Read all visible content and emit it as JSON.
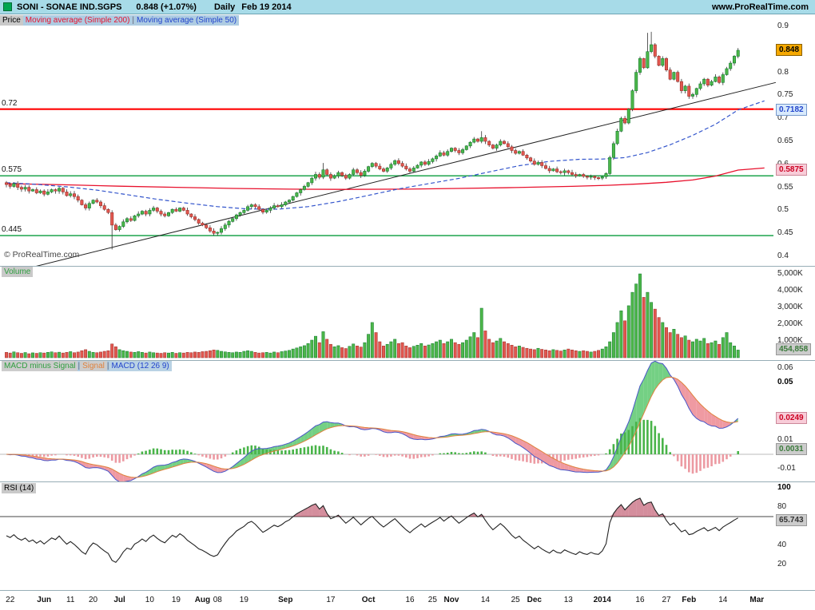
{
  "header": {
    "symbol": "SONI - SONAE IND.SGPS",
    "quote": "0.848 (+1.07%)",
    "timeframe": "Daily",
    "date": "Feb 19 2014",
    "site": "www.ProRealTime.com"
  },
  "colors": {
    "header_bg": "#a7dbe8",
    "up": "#4cb649",
    "up_stroke": "#117a2e",
    "down": "#e2574f",
    "down_stroke": "#9c2f28",
    "wick": "#333333",
    "ma200": "#e8112d",
    "ma50": "#3355cc",
    "level_red": "#ff0000",
    "level_green": "#089c3c",
    "trend": "#222222",
    "macd_line": "#4855c8",
    "signal_line": "#e0823c",
    "fill_up": "rgba(92,200,110,0.85)",
    "fill_down": "rgba(236,136,146,0.85)",
    "hist_up": "#49b449",
    "hist_down": "#ec9aa2",
    "rsi_line": "#222222",
    "rsi_fill": "rgba(170,30,60,0.5)"
  },
  "price_panel": {
    "label": "Price",
    "legend_separator": "|",
    "legend": [
      {
        "label": "Moving average (Simple 200)",
        "color": "#e8112d"
      },
      {
        "label": "Moving average (Simple 50)",
        "color": "#2244cc"
      }
    ],
    "copyright": "© ProRealTime.com",
    "y_ticks": [
      {
        "label": "0.9",
        "value": 0.9
      },
      {
        "label": "0.85",
        "value": 0.85
      },
      {
        "label": "0.8",
        "value": 0.8
      },
      {
        "label": "0.75",
        "value": 0.75
      },
      {
        "label": "0.7",
        "value": 0.7
      },
      {
        "label": "0.65",
        "value": 0.65
      },
      {
        "label": "0.6",
        "value": 0.6
      },
      {
        "label": "0.55",
        "value": 0.55
      },
      {
        "label": "0.5",
        "value": 0.5
      },
      {
        "label": "0.45",
        "value": 0.45
      },
      {
        "label": "0.4",
        "value": 0.4
      }
    ],
    "left_labels": [
      {
        "label": "0.72",
        "value": 0.72
      },
      {
        "label": "0.575",
        "value": 0.575
      },
      {
        "label": "0.445",
        "value": 0.445
      }
    ],
    "badges": [
      {
        "name": "last-price",
        "text": "0.848",
        "value": 0.848,
        "bg": "#f5a800",
        "fg": "#000000",
        "border": "#8a6000"
      },
      {
        "name": "ma50-value",
        "text": "0.7182",
        "value": 0.7182,
        "bg": "#d8eafc",
        "fg": "#2244cc",
        "border": "#7799cc"
      },
      {
        "name": "ma200-value",
        "text": "0.5875",
        "value": 0.5875,
        "bg": "#f8ccd8",
        "fg": "#cc0022",
        "border": "#cc8899"
      }
    ]
  },
  "volume_panel": {
    "label": "Volume",
    "label_color": "#2f9e3f",
    "y_ticks": [
      {
        "label": "5,000K",
        "value": 5000
      },
      {
        "label": "4,000K",
        "value": 4000
      },
      {
        "label": "3,000K",
        "value": 3000
      },
      {
        "label": "2,000K",
        "value": 2000
      },
      {
        "label": "1,000K",
        "value": 1000
      }
    ],
    "badge": {
      "name": "volume-value",
      "text": "454,858",
      "value": 455,
      "bg": "#cccccc",
      "fg": "#3a7a3a",
      "border": "#999999"
    }
  },
  "macd_panel": {
    "separator": "|",
    "labels": [
      {
        "label": "MACD minus Signal",
        "color": "#2f9e3f",
        "bg": "#cccccc"
      },
      {
        "label": "Signal",
        "color": "#e0823c",
        "bg": "#cccccc"
      },
      {
        "label": "MACD (12 26 9)",
        "color": "#2244cc",
        "bg": "#b9d2e4"
      }
    ],
    "y_ticks": [
      {
        "label": "0.06",
        "value": 0.06
      },
      {
        "label": "0.05",
        "value": 0.05,
        "bold": true
      },
      {
        "label": "0.01",
        "value": 0.01
      },
      {
        "label": "-0.01",
        "value": -0.01
      }
    ],
    "badges": [
      {
        "name": "signal-value",
        "text": "0.0249",
        "value": 0.0249,
        "bg": "#f8ccd8",
        "fg": "#cc0022",
        "border": "#cc8899"
      },
      {
        "name": "hist-value",
        "text": "0.0031",
        "value": 0.0031,
        "bg": "#cccccc",
        "fg": "#3a7a3a",
        "border": "#999999"
      }
    ]
  },
  "rsi_panel": {
    "label": "RSI (14)",
    "y_ticks": [
      {
        "label": "100",
        "value": 100,
        "bold": true
      },
      {
        "label": "80",
        "value": 80
      },
      {
        "label": "40",
        "value": 40
      },
      {
        "label": "20",
        "value": 20
      }
    ],
    "badge": {
      "name": "rsi-value",
      "text": "65.743",
      "value": 65.743,
      "bg": "#cccccc",
      "fg": "#333333",
      "border": "#999999"
    },
    "ref_level": 70
  },
  "chart_data": [
    {
      "type": "candlestick",
      "name": "SONI - SONAE IND.SGPS Daily",
      "ylim": [
        0.39,
        0.905
      ],
      "first_open": 0.56,
      "closes": [
        0.556,
        0.552,
        0.558,
        0.55,
        0.546,
        0.55,
        0.542,
        0.545,
        0.538,
        0.542,
        0.535,
        0.54,
        0.545,
        0.542,
        0.548,
        0.54,
        0.532,
        0.536,
        0.53,
        0.522,
        0.512,
        0.505,
        0.515,
        0.522,
        0.518,
        0.51,
        0.502,
        0.495,
        0.468,
        0.458,
        0.465,
        0.475,
        0.482,
        0.478,
        0.488,
        0.492,
        0.498,
        0.492,
        0.5,
        0.505,
        0.498,
        0.492,
        0.488,
        0.495,
        0.502,
        0.498,
        0.505,
        0.5,
        0.492,
        0.486,
        0.48,
        0.472,
        0.468,
        0.462,
        0.455,
        0.45,
        0.452,
        0.46,
        0.468,
        0.476,
        0.482,
        0.49,
        0.495,
        0.5,
        0.508,
        0.512,
        0.508,
        0.502,
        0.496,
        0.5,
        0.505,
        0.51,
        0.508,
        0.512,
        0.518,
        0.522,
        0.53,
        0.538,
        0.545,
        0.552,
        0.56,
        0.57,
        0.578,
        0.572,
        0.588,
        0.578,
        0.57,
        0.575,
        0.582,
        0.576,
        0.57,
        0.578,
        0.588,
        0.582,
        0.576,
        0.585,
        0.595,
        0.602,
        0.596,
        0.59,
        0.585,
        0.592,
        0.6,
        0.608,
        0.602,
        0.596,
        0.59,
        0.585,
        0.592,
        0.598,
        0.605,
        0.6,
        0.606,
        0.612,
        0.618,
        0.625,
        0.62,
        0.628,
        0.635,
        0.63,
        0.625,
        0.632,
        0.64,
        0.648,
        0.655,
        0.65,
        0.658,
        0.65,
        0.642,
        0.635,
        0.642,
        0.65,
        0.645,
        0.638,
        0.63,
        0.624,
        0.628,
        0.62,
        0.614,
        0.607,
        0.6,
        0.604,
        0.597,
        0.591,
        0.586,
        0.59,
        0.584,
        0.582,
        0.586,
        0.582,
        0.578,
        0.575,
        0.578,
        0.574,
        0.572,
        0.574,
        0.571,
        0.57,
        0.573,
        0.58,
        0.615,
        0.645,
        0.672,
        0.7,
        0.69,
        0.72,
        0.76,
        0.8,
        0.83,
        0.81,
        0.845,
        0.86,
        0.835,
        0.815,
        0.83,
        0.805,
        0.785,
        0.8,
        0.78,
        0.76,
        0.77,
        0.748,
        0.752,
        0.765,
        0.775,
        0.785,
        0.772,
        0.78,
        0.79,
        0.778,
        0.795,
        0.808,
        0.82,
        0.835,
        0.848
      ],
      "wick_overrides": {
        "28": {
          "low": 0.415
        },
        "56": {
          "low": 0.445
        },
        "84": {
          "high": 0.603
        },
        "126": {
          "high": 0.672
        },
        "170": {
          "high": 0.886
        },
        "171": {
          "high": 0.888
        }
      },
      "levels": [
        {
          "value": 0.72,
          "color": "red",
          "width": 2.2
        },
        {
          "value": 0.575,
          "color": "green",
          "width": 1.4
        },
        {
          "value": 0.445,
          "color": "green",
          "width": 1.4
        }
      ],
      "trendline": {
        "i1": -5,
        "p1": 0.352,
        "i2": 204,
        "p2": 0.778
      },
      "ma200": [
        [
          0,
          0.558
        ],
        [
          15,
          0.5555
        ],
        [
          30,
          0.5525
        ],
        [
          45,
          0.55
        ],
        [
          60,
          0.5475
        ],
        [
          75,
          0.546
        ],
        [
          90,
          0.5455
        ],
        [
          105,
          0.546
        ],
        [
          120,
          0.5475
        ],
        [
          135,
          0.5495
        ],
        [
          150,
          0.552
        ],
        [
          160,
          0.5545
        ],
        [
          168,
          0.5575
        ],
        [
          175,
          0.561
        ],
        [
          182,
          0.566
        ],
        [
          188,
          0.5745
        ],
        [
          194,
          0.5875
        ],
        [
          201,
          0.592
        ]
      ],
      "ma50": [
        [
          0,
          0.56
        ],
        [
          8,
          0.5565
        ],
        [
          16,
          0.551
        ],
        [
          24,
          0.544
        ],
        [
          32,
          0.534
        ],
        [
          40,
          0.524
        ],
        [
          48,
          0.5155
        ],
        [
          56,
          0.508
        ],
        [
          64,
          0.503
        ],
        [
          72,
          0.5025
        ],
        [
          80,
          0.508
        ],
        [
          88,
          0.519
        ],
        [
          96,
          0.5325
        ],
        [
          104,
          0.5465
        ],
        [
          112,
          0.558
        ],
        [
          120,
          0.5695
        ],
        [
          128,
          0.5835
        ],
        [
          136,
          0.597
        ],
        [
          144,
          0.6065
        ],
        [
          152,
          0.611
        ],
        [
          158,
          0.6115
        ],
        [
          164,
          0.6145
        ],
        [
          170,
          0.6255
        ],
        [
          176,
          0.6425
        ],
        [
          182,
          0.663
        ],
        [
          188,
          0.687
        ],
        [
          194,
          0.7182
        ],
        [
          201,
          0.738
        ]
      ],
      "last_close": 0.848,
      "ma50_last": 0.7182,
      "ma200_last": 0.5875,
      "x_ticks": [
        {
          "label": "22",
          "i": 1
        },
        {
          "label": "Jun",
          "i": 10,
          "bold": true
        },
        {
          "label": "11",
          "i": 17
        },
        {
          "label": "20",
          "i": 23
        },
        {
          "label": "Jul",
          "i": 30,
          "bold": true
        },
        {
          "label": "10",
          "i": 38
        },
        {
          "label": "19",
          "i": 45
        },
        {
          "label": "Aug",
          "i": 52,
          "bold": true
        },
        {
          "label": "08",
          "i": 56
        },
        {
          "label": "19",
          "i": 63
        },
        {
          "label": "Sep",
          "i": 74,
          "bold": true
        },
        {
          "label": "17",
          "i": 86
        },
        {
          "label": "Oct",
          "i": 96,
          "bold": true
        },
        {
          "label": "16",
          "i": 107
        },
        {
          "label": "25",
          "i": 113
        },
        {
          "label": "Nov",
          "i": 118,
          "bold": true
        },
        {
          "label": "14",
          "i": 127
        },
        {
          "label": "25",
          "i": 135
        },
        {
          "label": "Dec",
          "i": 140,
          "bold": true
        },
        {
          "label": "13",
          "i": 149
        },
        {
          "label": "2014",
          "i": 158,
          "bold": true
        },
        {
          "label": "16",
          "i": 168
        },
        {
          "label": "27",
          "i": 175
        },
        {
          "label": "Feb",
          "i": 181,
          "bold": true
        },
        {
          "label": "14",
          "i": 190
        },
        {
          "label": "Mar",
          "i": 199,
          "bold": true
        }
      ]
    },
    {
      "type": "bar",
      "name": "Volume",
      "unit": "K",
      "ylim": [
        0,
        5600
      ],
      "last_label": "454,858",
      "values": [
        320,
        280,
        350,
        300,
        260,
        310,
        240,
        290,
        260,
        300,
        280,
        320,
        350,
        300,
        330,
        280,
        320,
        360,
        300,
        340,
        420,
        480,
        380,
        320,
        300,
        340,
        380,
        420,
        820,
        650,
        480,
        420,
        380,
        340,
        320,
        360,
        320,
        280,
        340,
        300,
        280,
        260,
        300,
        280,
        320,
        260,
        300,
        280,
        320,
        300,
        340,
        320,
        360,
        380,
        420,
        460,
        440,
        380,
        350,
        320,
        300,
        340,
        320,
        380,
        420,
        380,
        320,
        280,
        300,
        320,
        280,
        340,
        300,
        360,
        400,
        440,
        520,
        580,
        650,
        720,
        850,
        1050,
        1280,
        900,
        1550,
        1100,
        800,
        650,
        720,
        600,
        550,
        680,
        820,
        700,
        640,
        900,
        1400,
        2100,
        1500,
        950,
        700,
        800,
        950,
        1100,
        850,
        900,
        700,
        600,
        680,
        750,
        850,
        700,
        760,
        850,
        950,
        1050,
        850,
        950,
        1100,
        900,
        800,
        900,
        1050,
        1250,
        1500,
        1200,
        2950,
        1600,
        1100,
        900,
        1000,
        1150,
        950,
        850,
        750,
        650,
        700,
        620,
        560,
        520,
        480,
        560,
        500,
        460,
        420,
        480,
        440,
        400,
        460,
        520,
        460,
        420,
        380,
        420,
        380,
        340,
        380,
        440,
        520,
        650,
        950,
        1500,
        2100,
        2800,
        2200,
        3100,
        3900,
        4400,
        5000,
        3600,
        3900,
        3300,
        2900,
        2400,
        2100,
        1800,
        1500,
        1700,
        1400,
        1200,
        1300,
        1050,
        950,
        1100,
        1000,
        1150,
        850,
        900,
        1000,
        800,
        1200,
        1500,
        900,
        700,
        455
      ]
    },
    {
      "type": "macd",
      "name": "MACD (12 26 9)",
      "params": [
        12,
        26,
        9
      ],
      "source": "closes of panel 0",
      "ylim": [
        -0.019,
        0.066
      ],
      "last_signal": 0.0249,
      "last_hist": 0.0031
    },
    {
      "type": "line",
      "name": "RSI (14)",
      "period": 14,
      "source": "closes of panel 0",
      "ylim": [
        0,
        100
      ],
      "ref": 70,
      "last": 65.743
    }
  ]
}
